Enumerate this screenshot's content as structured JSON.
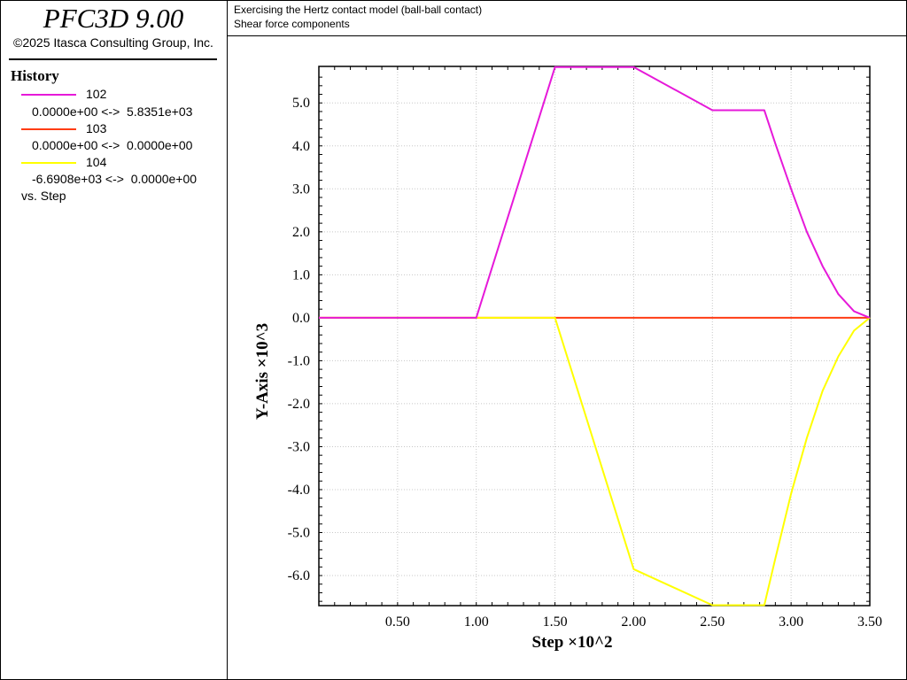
{
  "header": {
    "app_title": "PFC3D 9.00",
    "copyright": "©2025 Itasca Consulting Group, Inc.",
    "subtitle_1": "Exercising the Hertz contact model (ball-ball contact)",
    "subtitle_2": "Shear force components"
  },
  "legend": {
    "title": "History",
    "items": [
      {
        "id": "102",
        "range": "0.0000e+00 <->  5.8351e+03",
        "color": "#e619d9"
      },
      {
        "id": "103",
        "range": "0.0000e+00 <->  0.0000e+00",
        "color": "#ff3c14"
      },
      {
        "id": "104",
        "range": "-6.6908e+03 <->  0.0000e+00",
        "color": "#ffff00"
      }
    ],
    "vs_label": "vs. Step"
  },
  "chart_data": {
    "type": "line",
    "xlabel": "Step ×10^2",
    "ylabel": "Y-Axis ×10^3",
    "xlim": [
      0,
      3.5
    ],
    "ylim": [
      -6.7,
      5.85
    ],
    "xticks": [
      0.5,
      1.0,
      1.5,
      2.0,
      2.5,
      3.0,
      3.5
    ],
    "xtick_labels": [
      "0.50",
      "1.00",
      "1.50",
      "2.00",
      "2.50",
      "3.00",
      "3.50"
    ],
    "yticks": [
      -6,
      -5,
      -4,
      -3,
      -2,
      -1,
      0,
      1,
      2,
      3,
      4,
      5
    ],
    "ytick_labels": [
      "-6.0",
      "-5.0",
      "-4.0",
      "-3.0",
      "-2.0",
      "-1.0",
      "0.0",
      "1.0",
      "2.0",
      "3.0",
      "4.0",
      "5.0"
    ],
    "grid": true,
    "series": [
      {
        "name": "102",
        "color": "#e619d9",
        "points": [
          [
            0,
            0
          ],
          [
            1.0,
            0
          ],
          [
            1.5,
            5.835
          ],
          [
            2.0,
            5.835
          ],
          [
            2.5,
            4.83
          ],
          [
            2.83,
            4.83
          ],
          [
            2.9,
            4.05
          ],
          [
            3.0,
            3.0
          ],
          [
            3.1,
            2.0
          ],
          [
            3.2,
            1.2
          ],
          [
            3.3,
            0.55
          ],
          [
            3.4,
            0.15
          ],
          [
            3.5,
            0
          ]
        ]
      },
      {
        "name": "103",
        "color": "#ff3c14",
        "points": [
          [
            0,
            0
          ],
          [
            3.5,
            0
          ]
        ]
      },
      {
        "name": "104",
        "color": "#ffff00",
        "points": [
          [
            0,
            0
          ],
          [
            1.5,
            0
          ],
          [
            2.0,
            -5.85
          ],
          [
            2.5,
            -6.69
          ],
          [
            2.83,
            -6.69
          ],
          [
            2.9,
            -5.6
          ],
          [
            3.0,
            -4.1
          ],
          [
            3.1,
            -2.8
          ],
          [
            3.2,
            -1.7
          ],
          [
            3.3,
            -0.9
          ],
          [
            3.4,
            -0.3
          ],
          [
            3.5,
            0
          ]
        ]
      }
    ]
  }
}
